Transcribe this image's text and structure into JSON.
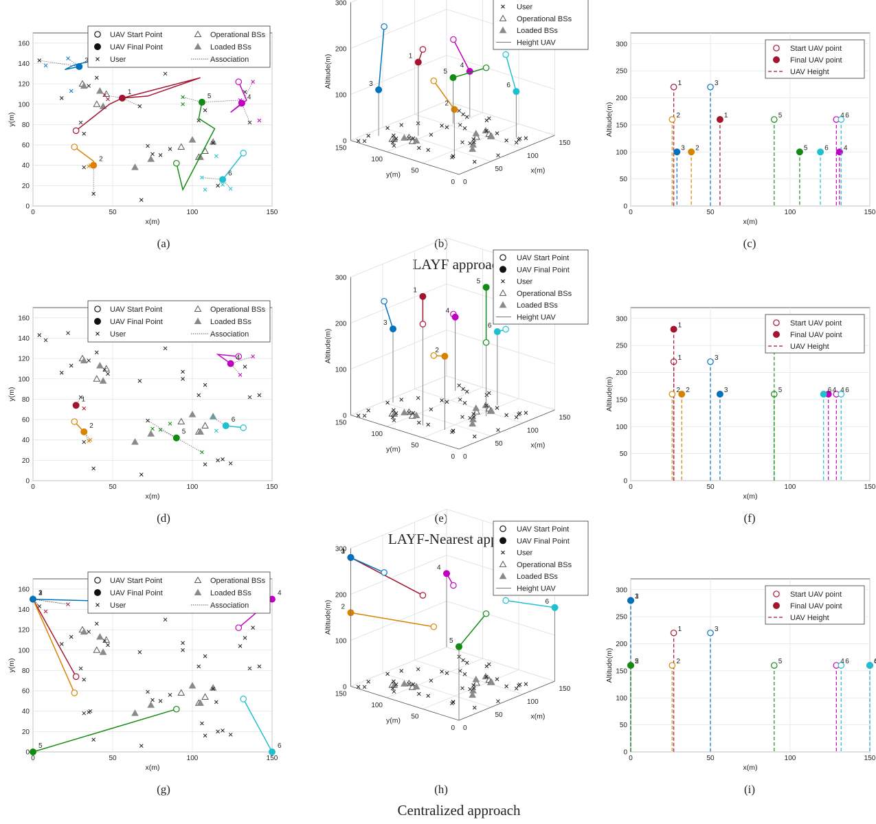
{
  "labels": {
    "x_axis": "x(m)",
    "y_axis": "y(m)",
    "altitude_axis": "Altitude(m)",
    "legend_2d": [
      "UAV Start Point",
      "UAV Final Point",
      "User",
      "Operational BSs",
      "Loaded BSs",
      "Association"
    ],
    "legend_3d": [
      "UAV Start Point",
      "UAV Final Point",
      "User",
      "Operational BSs",
      "Loaded BSs",
      "Height UAV"
    ],
    "legend_height": [
      "Start UAV point",
      "Final UAV point",
      "UAV Height"
    ],
    "panel_letters": [
      "(a)",
      "(b)",
      "(c)",
      "(d)",
      "(e)",
      "(f)",
      "(g)",
      "(h)",
      "(i)"
    ],
    "row_titles": [
      "LAYF approach",
      "LAYF-Nearest approach",
      "Centralized approach"
    ]
  },
  "uav_colors": {
    "1": "#a2142f",
    "2": "#d98200",
    "3": "#0072bd",
    "4": "#c000c0",
    "5": "#138a13",
    "6": "#1fbfcf"
  },
  "chart_data": [
    {
      "panel": "a",
      "type": "scatter",
      "xlim": [
        0,
        150
      ],
      "ylim": [
        0,
        170
      ],
      "xticks": [
        0,
        50,
        100,
        150
      ],
      "yticks": [
        0,
        20,
        40,
        60,
        80,
        100,
        120,
        140,
        160
      ],
      "legend": "top-center",
      "grid": true,
      "start": {
        "1": [
          27,
          74
        ],
        "2": [
          26,
          58
        ],
        "3": [
          50,
          148
        ],
        "4": [
          129,
          122
        ],
        "5": [
          90,
          42
        ],
        "6": [
          132,
          52
        ]
      },
      "final": {
        "1": [
          56,
          106
        ],
        "2": [
          38,
          40
        ],
        "3": [
          29,
          137
        ],
        "4": [
          131,
          101
        ],
        "5": [
          106,
          102
        ],
        "6": [
          119,
          26
        ]
      },
      "paths": {
        "1": [
          [
            27,
            74
          ],
          [
            48,
            100
          ],
          [
            56,
            106
          ],
          [
            105,
            126
          ],
          [
            72,
            108
          ],
          [
            56,
            106
          ]
        ],
        "2": [
          [
            26,
            58
          ],
          [
            38,
            44
          ],
          [
            38,
            40
          ]
        ],
        "3": [
          [
            50,
            148
          ],
          [
            25,
            138
          ],
          [
            20,
            134
          ],
          [
            29,
            137
          ]
        ],
        "4": [
          [
            129,
            122
          ],
          [
            134,
            104
          ],
          [
            124,
            92
          ],
          [
            131,
            101
          ]
        ],
        "5": [
          [
            90,
            42
          ],
          [
            94,
            16
          ],
          [
            114,
            76
          ],
          [
            104,
            86
          ],
          [
            106,
            102
          ]
        ],
        "6": [
          [
            132,
            52
          ],
          [
            119,
            26
          ]
        ]
      }
    },
    {
      "panel": "b",
      "type": "scatter3d",
      "xlim": [
        0,
        150
      ],
      "ylim": [
        0,
        150
      ],
      "zlim": [
        0,
        300
      ],
      "xticks": [
        0,
        50,
        100,
        150
      ],
      "yticks": [
        50,
        100,
        150
      ],
      "zticks": [
        0,
        100,
        200,
        300
      ],
      "legend": "top-right"
    },
    {
      "panel": "c",
      "type": "stem",
      "xlim": [
        0,
        150
      ],
      "ylim": [
        0,
        320
      ],
      "xticks": [
        0,
        50,
        100,
        150
      ],
      "yticks": [
        0,
        50,
        100,
        150,
        200,
        250,
        300
      ],
      "legend": "top-right",
      "start": {
        "1": [
          27,
          220
        ],
        "2": [
          26,
          160
        ],
        "3": [
          50,
          220
        ],
        "4": [
          129,
          160
        ],
        "5": [
          90,
          160
        ],
        "6": [
          132,
          160
        ]
      },
      "final": {
        "1": [
          56,
          160
        ],
        "2": [
          38,
          100
        ],
        "3": [
          29,
          100
        ],
        "4": [
          131,
          100
        ],
        "5": [
          106,
          100
        ],
        "6": [
          119,
          100
        ]
      }
    },
    {
      "panel": "d",
      "type": "scatter",
      "xlim": [
        0,
        150
      ],
      "ylim": [
        0,
        170
      ],
      "xticks": [
        0,
        50,
        100,
        150
      ],
      "yticks": [
        0,
        20,
        40,
        60,
        80,
        100,
        120,
        140,
        160
      ],
      "legend": "top-center",
      "grid": true,
      "start": {
        "1": [
          27,
          74
        ],
        "2": [
          26,
          58
        ],
        "3": [
          50,
          148
        ],
        "4": [
          129,
          122
        ],
        "5": [
          90,
          42
        ],
        "6": [
          132,
          52
        ]
      },
      "final": {
        "1": [
          27,
          74
        ],
        "2": [
          32,
          48
        ],
        "3": [
          56,
          141
        ],
        "4": [
          124,
          115
        ],
        "5": [
          90,
          42
        ],
        "6": [
          121,
          54
        ]
      },
      "paths": {
        "1": [
          [
            27,
            74
          ]
        ],
        "2": [
          [
            26,
            58
          ],
          [
            32,
            48
          ]
        ],
        "3": [
          [
            50,
            148
          ],
          [
            56,
            141
          ]
        ],
        "4": [
          [
            129,
            122
          ],
          [
            116,
            124
          ],
          [
            124,
            115
          ]
        ],
        "5": [
          [
            90,
            42
          ]
        ],
        "6": [
          [
            132,
            52
          ],
          [
            121,
            54
          ]
        ]
      }
    },
    {
      "panel": "e",
      "type": "scatter3d",
      "xlim": [
        0,
        150
      ],
      "ylim": [
        0,
        150
      ],
      "zlim": [
        0,
        300
      ],
      "xticks": [
        0,
        50,
        100,
        150
      ],
      "yticks": [
        50,
        100,
        150
      ],
      "zticks": [
        0,
        100,
        200,
        300
      ],
      "legend": "top-right"
    },
    {
      "panel": "f",
      "type": "stem",
      "xlim": [
        0,
        150
      ],
      "ylim": [
        0,
        320
      ],
      "xticks": [
        0,
        50,
        100,
        150
      ],
      "yticks": [
        0,
        50,
        100,
        150,
        200,
        250,
        300
      ],
      "legend": "top-right",
      "start": {
        "1": [
          27,
          220
        ],
        "2": [
          26,
          160
        ],
        "3": [
          50,
          220
        ],
        "4": [
          129,
          160
        ],
        "5": [
          90,
          160
        ],
        "6": [
          132,
          160
        ]
      },
      "final": {
        "1": [
          27,
          280
        ],
        "2": [
          32,
          160
        ],
        "3": [
          56,
          160
        ],
        "4": [
          124,
          160
        ],
        "5": [
          90,
          280
        ],
        "6": [
          121,
          160
        ]
      }
    },
    {
      "panel": "g",
      "type": "scatter",
      "xlim": [
        0,
        150
      ],
      "ylim": [
        0,
        170
      ],
      "xticks": [
        0,
        50,
        100,
        150
      ],
      "yticks": [
        0,
        20,
        40,
        60,
        80,
        100,
        120,
        140,
        160
      ],
      "legend": "top-center",
      "grid": true,
      "start": {
        "1": [
          27,
          74
        ],
        "2": [
          26,
          58
        ],
        "3": [
          50,
          148
        ],
        "4": [
          129,
          122
        ],
        "5": [
          90,
          42
        ],
        "6": [
          132,
          52
        ]
      },
      "final": {
        "1": [
          0,
          150
        ],
        "2": [
          0,
          150
        ],
        "3": [
          0,
          150
        ],
        "4": [
          150,
          150
        ],
        "5": [
          0,
          0
        ],
        "6": [
          150,
          0
        ]
      },
      "paths": {
        "1": [
          [
            27,
            74
          ],
          [
            0,
            150
          ]
        ],
        "2": [
          [
            26,
            58
          ],
          [
            0,
            150
          ]
        ],
        "3": [
          [
            50,
            148
          ],
          [
            0,
            150
          ]
        ],
        "4": [
          [
            129,
            122
          ],
          [
            150,
            150
          ]
        ],
        "5": [
          [
            90,
            42
          ],
          [
            0,
            0
          ]
        ],
        "6": [
          [
            132,
            52
          ],
          [
            150,
            0
          ]
        ]
      }
    },
    {
      "panel": "h",
      "type": "scatter3d",
      "xlim": [
        0,
        150
      ],
      "ylim": [
        0,
        150
      ],
      "zlim": [
        0,
        300
      ],
      "xticks": [
        0,
        50,
        100,
        150
      ],
      "yticks": [
        50,
        100,
        150
      ],
      "zticks": [
        0,
        100,
        200,
        300
      ],
      "legend": "top-right"
    },
    {
      "panel": "i",
      "type": "stem",
      "xlim": [
        0,
        150
      ],
      "ylim": [
        0,
        320
      ],
      "xticks": [
        0,
        50,
        100,
        150
      ],
      "yticks": [
        0,
        50,
        100,
        150,
        200,
        250,
        300
      ],
      "legend": "top-right",
      "start": {
        "1": [
          27,
          220
        ],
        "2": [
          26,
          160
        ],
        "3": [
          50,
          220
        ],
        "4": [
          129,
          160
        ],
        "5": [
          90,
          160
        ],
        "6": [
          132,
          160
        ]
      },
      "final": {
        "1": [
          0,
          280
        ],
        "2": [
          0,
          160
        ],
        "3": [
          0,
          280
        ],
        "4": [
          150,
          160
        ],
        "5": [
          0,
          160
        ],
        "6": [
          150,
          160
        ]
      }
    }
  ],
  "users": [
    [
      4,
      143
    ],
    [
      8,
      138
    ],
    [
      22,
      145
    ],
    [
      35,
      118
    ],
    [
      18,
      106
    ],
    [
      24,
      113
    ],
    [
      30,
      82
    ],
    [
      32,
      71
    ],
    [
      36,
      40
    ],
    [
      32,
      38
    ],
    [
      45,
      109
    ],
    [
      47,
      105
    ],
    [
      67,
      98
    ],
    [
      52,
      145
    ],
    [
      68,
      140
    ],
    [
      83,
      130
    ],
    [
      94,
      107
    ],
    [
      94,
      100
    ],
    [
      72,
      59
    ],
    [
      75,
      51
    ],
    [
      80,
      50
    ],
    [
      104,
      84
    ],
    [
      106,
      28
    ],
    [
      108,
      16
    ],
    [
      116,
      20
    ],
    [
      119,
      21
    ],
    [
      124,
      17
    ],
    [
      108,
      94
    ],
    [
      113,
      62
    ],
    [
      115,
      49
    ],
    [
      136,
      82
    ],
    [
      142,
      84
    ],
    [
      130,
      104
    ],
    [
      133,
      112
    ],
    [
      138,
      122
    ],
    [
      86,
      56
    ],
    [
      38,
      12
    ],
    [
      68,
      6
    ],
    [
      35,
      39
    ],
    [
      40,
      126
    ]
  ],
  "op_bs": [
    [
      31,
      120
    ],
    [
      46,
      110
    ],
    [
      40,
      100
    ],
    [
      93,
      58
    ],
    [
      108,
      54
    ],
    [
      104,
      48
    ]
  ],
  "loaded_bs": [
    [
      32,
      118
    ],
    [
      42,
      113
    ],
    [
      44,
      98
    ],
    [
      64,
      38
    ],
    [
      74,
      46
    ],
    [
      100,
      65
    ],
    [
      105,
      48
    ],
    [
      113,
      63
    ]
  ]
}
